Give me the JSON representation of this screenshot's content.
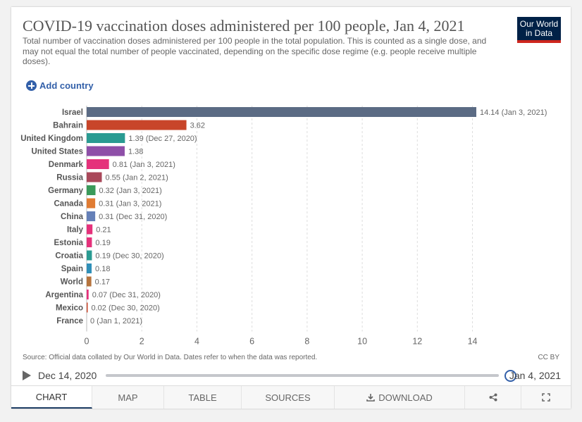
{
  "header": {
    "title": "COVID-19 vaccination doses administered per 100 people, Jan 4, 2021",
    "subtitle": "Total number of vaccination doses administered per 100 people in the total population. This is counted as a single dose, and may not equal the total number of people vaccinated, depending on the specific dose regime (e.g. people receive multiple doses).",
    "logo_line1": "Our World",
    "logo_line2": "in Data"
  },
  "controls": {
    "add_country": "Add country"
  },
  "chart_data": {
    "type": "bar",
    "orientation": "horizontal",
    "categories": [
      "Israel",
      "Bahrain",
      "United Kingdom",
      "United States",
      "Denmark",
      "Russia",
      "Germany",
      "Canada",
      "China",
      "Italy",
      "Estonia",
      "Croatia",
      "Spain",
      "World",
      "Argentina",
      "Mexico",
      "France"
    ],
    "values": [
      14.14,
      3.62,
      1.39,
      1.38,
      0.81,
      0.55,
      0.32,
      0.31,
      0.31,
      0.21,
      0.19,
      0.19,
      0.18,
      0.17,
      0.07,
      0.02,
      0
    ],
    "value_labels": [
      "14.14 (Jan 3, 2021)",
      "3.62",
      "1.39 (Dec 27, 2020)",
      "1.38",
      "0.81 (Jan 3, 2021)",
      "0.55 (Jan 2, 2021)",
      "0.32 (Jan 3, 2021)",
      "0.31 (Jan 3, 2021)",
      "0.31 (Dec 31, 2020)",
      "0.21",
      "0.19",
      "0.19 (Dec 30, 2020)",
      "0.18",
      "0.17",
      "0.07 (Dec 31, 2020)",
      "0.02 (Dec 30, 2020)",
      "0 (Jan 1, 2021)"
    ],
    "colors": [
      "#5b6b84",
      "#c8452a",
      "#2a9b92",
      "#8e4fa8",
      "#e5317b",
      "#a9485a",
      "#3a9a5a",
      "#e07c33",
      "#6580b8",
      "#e5317b",
      "#e5317b",
      "#2a9b92",
      "#2f8fb8",
      "#b5733d",
      "#e5317b",
      "#c8452a",
      "#5b6b84"
    ],
    "xticks": [
      0,
      2,
      4,
      6,
      8,
      10,
      12,
      14
    ],
    "xlim": [
      0,
      14.14
    ],
    "grid": "vertical dashed",
    "xlabel": "",
    "ylabel": ""
  },
  "footer": {
    "source": "Source: Official data collated by Our World in Data. Dates refer to when the data was reported.",
    "license": "CC BY"
  },
  "timeline": {
    "start": "Dec 14, 2020",
    "end": "Jan 4, 2021"
  },
  "tabs": [
    {
      "label": "CHART",
      "active": true
    },
    {
      "label": "MAP"
    },
    {
      "label": "TABLE"
    },
    {
      "label": "SOURCES"
    },
    {
      "label": "DOWNLOAD",
      "icon": "download-icon"
    },
    {
      "label": "",
      "icon": "share-icon"
    },
    {
      "label": "",
      "icon": "fullscreen-icon"
    }
  ]
}
